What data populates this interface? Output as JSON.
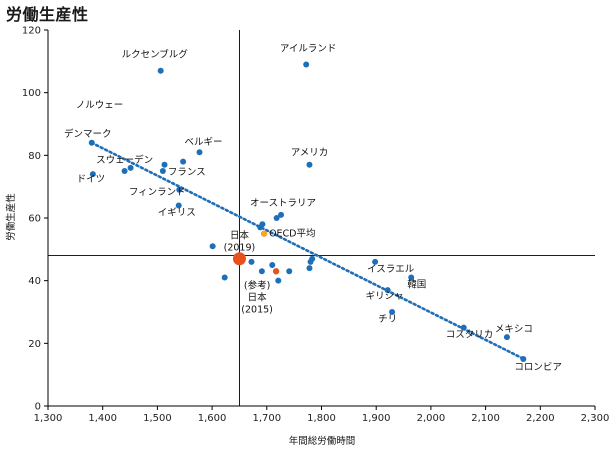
{
  "chart_data": {
    "type": "scatter",
    "title": "労働生産性",
    "xlabel": "年間総労働時間",
    "ylabel": "労働生産性",
    "xlim": [
      1300,
      2300
    ],
    "ylim": [
      0,
      120
    ],
    "xticks": [
      "1,300",
      "1,400",
      "1,500",
      "1,600",
      "1,700",
      "1,800",
      "1,900",
      "2,000",
      "2,100",
      "2,200",
      "2,300"
    ],
    "yticks": [
      "0",
      "20",
      "40",
      "60",
      "80",
      "100",
      "120"
    ],
    "colors": {
      "point": "#1f6fb8",
      "japan": "#e8501c",
      "oecd": "#f5a623",
      "trend": "#1f6fb8",
      "ref_label": "#e8501c",
      "axis": "#000000"
    },
    "reference_lines": {
      "x": 1650,
      "y": 48
    },
    "trendline": {
      "from": [
        1380,
        84
      ],
      "to": [
        2170,
        15
      ]
    },
    "points": [
      {
        "x": 1506,
        "y": 107,
        "label": "ルクセンブルグ"
      },
      {
        "x": 1772,
        "y": 109,
        "label": "アイルランド"
      },
      {
        "x": 1380,
        "y": 84,
        "label": "デンマーク"
      },
      {
        "x": 1577,
        "y": 81,
        "label": "ベルギー"
      },
      {
        "x": 1778,
        "y": 77,
        "label": "アメリカ"
      },
      {
        "x": 1451,
        "y": 76,
        "label": "スウェーデン"
      },
      {
        "x": 1513,
        "y": 77,
        "label": ""
      },
      {
        "x": 1510,
        "y": 75,
        "label": "フランス"
      },
      {
        "x": 1547,
        "y": 78,
        "label": ""
      },
      {
        "x": 1382,
        "y": 74,
        "label": "ドイツ"
      },
      {
        "x": 1440,
        "y": 75,
        "label": ""
      },
      {
        "x": 1540,
        "y": 69,
        "label": "フィンランド"
      },
      {
        "x": 1539,
        "y": 64,
        "label": "イギリス"
      },
      {
        "x": 1726,
        "y": 61,
        "label": "オーストラリア"
      },
      {
        "x": 1718,
        "y": 60,
        "label": ""
      },
      {
        "x": 1692,
        "y": 58,
        "label": ""
      },
      {
        "x": 1688,
        "y": 57,
        "label": ""
      },
      {
        "x": 1601,
        "y": 51,
        "label": ""
      },
      {
        "x": 1650,
        "y": 47,
        "label": "日本\n(2019)",
        "kind": "japan"
      },
      {
        "x": 1695,
        "y": 55,
        "label": "OECD平均",
        "kind": "oecd"
      },
      {
        "x": 1717,
        "y": 43,
        "label": "(参考)\n日本\n(2015)",
        "kind": "japan_ref"
      },
      {
        "x": 1672,
        "y": 46,
        "label": ""
      },
      {
        "x": 1691,
        "y": 43,
        "label": ""
      },
      {
        "x": 1710,
        "y": 45,
        "label": ""
      },
      {
        "x": 1623,
        "y": 41,
        "label": ""
      },
      {
        "x": 1721,
        "y": 40,
        "label": ""
      },
      {
        "x": 1741,
        "y": 43,
        "label": ""
      },
      {
        "x": 1783,
        "y": 47,
        "label": ""
      },
      {
        "x": 1780,
        "y": 46,
        "label": ""
      },
      {
        "x": 1778,
        "y": 44,
        "label": ""
      },
      {
        "x": 1898,
        "y": 46,
        "label": "イスラエル"
      },
      {
        "x": 1964,
        "y": 41,
        "label": "韓国"
      },
      {
        "x": 1921,
        "y": 37,
        "label": "ギリシャ"
      },
      {
        "x": 1929,
        "y": 30,
        "label": "チリ"
      },
      {
        "x": 2060,
        "y": 25,
        "label": "コスタリカ"
      },
      {
        "x": 2139,
        "y": 22,
        "label": "メキシコ"
      },
      {
        "x": 2169,
        "y": 15,
        "label": "コロンビア"
      }
    ],
    "extra_labels": [
      {
        "text": "ノルウェー",
        "x": 1380,
        "y": 96
      }
    ]
  }
}
